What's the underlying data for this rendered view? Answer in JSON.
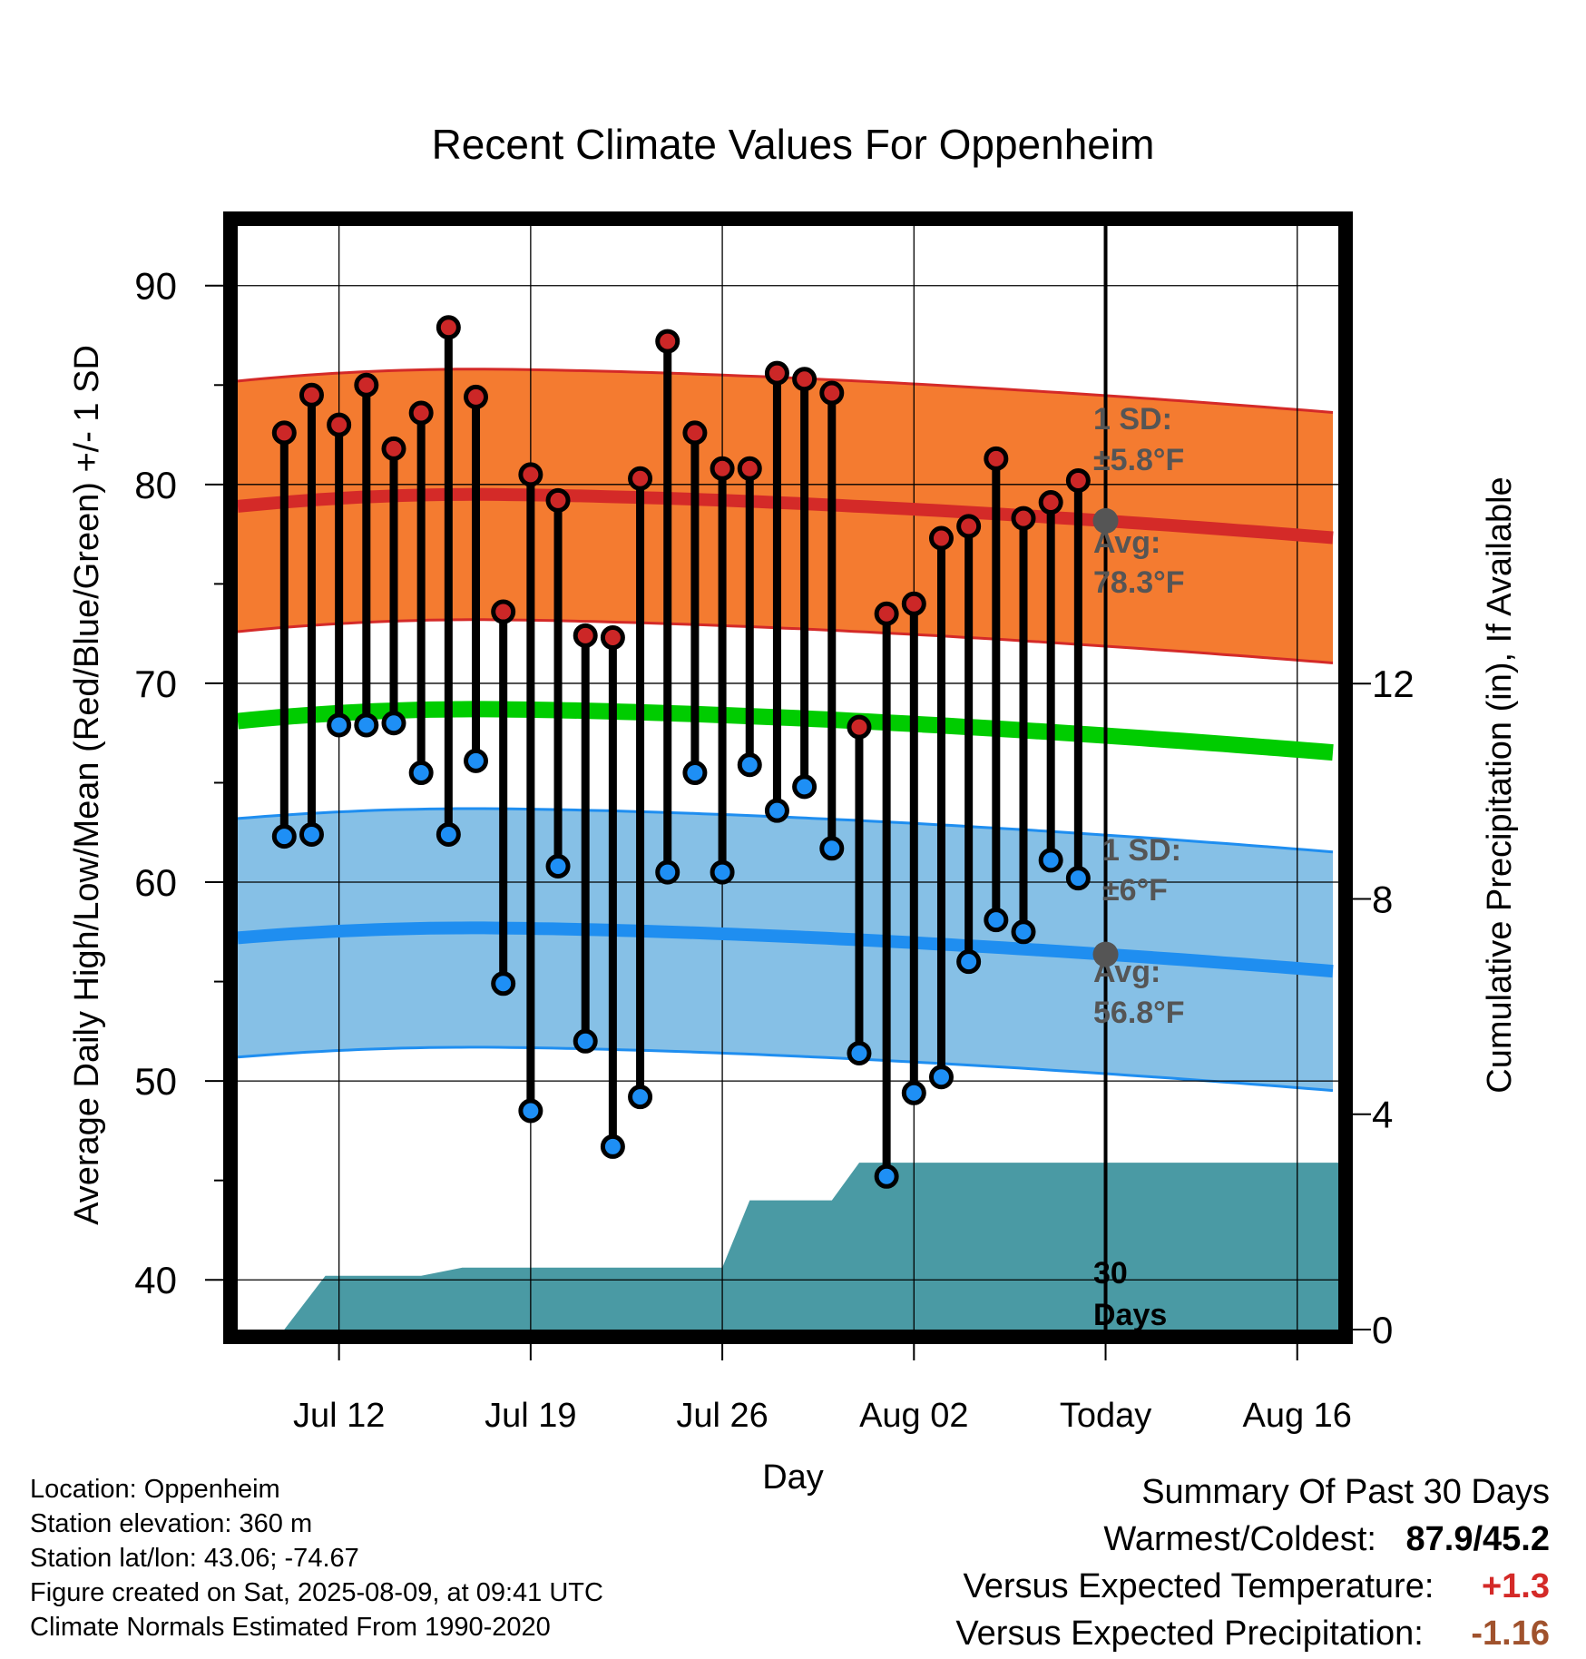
{
  "chart_data": {
    "type": "line",
    "title": "Recent Climate Values For Oppenheim",
    "xlabel": "Day",
    "ylabel": "Average Daily High/Low/Mean (Red/Blue/Green) +/- 1 SD",
    "y2label": "Cumulative Precipitation (in), If Available",
    "ylim": [
      37.5,
      93
    ],
    "y2lim": [
      0,
      20.5
    ],
    "yticks": [
      "40",
      "50",
      "60",
      "70",
      "80",
      "90"
    ],
    "y2ticks": [
      "0",
      "4",
      "8",
      "12"
    ],
    "x_ticks": [
      {
        "day": 12,
        "label": "Jul 12"
      },
      {
        "day": 19,
        "label": "Jul 19"
      },
      {
        "day": 26,
        "label": "Jul 26"
      },
      {
        "day": 33,
        "label": "Aug 02"
      },
      {
        "day": 40,
        "label": "Today"
      },
      {
        "day": 47,
        "label": "Aug 16"
      }
    ],
    "today_day": 40,
    "highs": [
      82.6,
      84.5,
      83.0,
      85.0,
      81.8,
      83.6,
      87.9,
      84.4,
      73.6,
      80.5,
      79.2,
      72.4,
      72.3,
      80.3,
      87.2,
      82.6,
      80.8,
      80.8,
      85.6,
      85.3,
      84.6,
      67.8,
      73.5,
      74.0,
      77.3,
      77.9,
      81.3,
      78.3,
      79.1,
      80.2
    ],
    "lows": [
      62.3,
      62.4,
      67.9,
      67.9,
      68.0,
      65.5,
      62.4,
      66.1,
      54.9,
      48.5,
      60.8,
      52.0,
      46.7,
      49.2,
      60.5,
      65.5,
      60.5,
      65.9,
      63.6,
      64.8,
      61.7,
      51.4,
      45.2,
      49.4,
      50.2,
      56.0,
      58.1,
      57.5,
      61.1,
      60.2
    ],
    "normal_high": {
      "start": 78.9,
      "peak": 79.5,
      "end": 77.3
    },
    "normal_low": {
      "start": 57.2,
      "peak": 57.7,
      "end": 55.5
    },
    "normal_mean": {
      "start": 68.1,
      "peak": 68.7,
      "end": 66.5
    },
    "precip_cumulative": [
      {
        "day": 10,
        "value": 0.0
      },
      {
        "day": 11.5,
        "value": 1.0
      },
      {
        "day": 15,
        "value": 1.0
      },
      {
        "day": 16.5,
        "value": 1.15
      },
      {
        "day": 26,
        "value": 1.15
      },
      {
        "day": 27,
        "value": 2.4
      },
      {
        "day": 30,
        "value": 2.4
      },
      {
        "day": 31,
        "value": 3.1
      },
      {
        "day": 48.5,
        "value": 3.1
      }
    ],
    "annotations": {
      "high_sd_label": "1 SD:",
      "high_sd_value": "±5.8°F",
      "high_avg_label": "Avg:",
      "high_avg_value": "78.3°F",
      "low_sd_label": "1 SD:",
      "low_sd_value": "±6°F",
      "low_avg_label": "Avg:",
      "low_avg_value": "56.8°F",
      "window_number": "30",
      "window_unit": "Days"
    },
    "colors": {
      "high_band": "#f47b30",
      "high_line": "#d42a28",
      "low_band": "#86c0e6",
      "low_line": "#1f8ef0",
      "mean_line": "#00cc00",
      "precip": "#4a9aa4",
      "high_marker": "#cc2727",
      "low_marker": "#1e8ff5",
      "annotation": "#555555"
    },
    "grid": true
  },
  "footer": {
    "location": "Location: Oppenheim",
    "elevation": "Station elevation: 360 m",
    "latlon": "Station lat/lon: 43.06; -74.67",
    "created": "Figure created on Sat, 2025-08-09, at 09:41 UTC",
    "normals": "Climate Normals Estimated From 1990-2020"
  },
  "summary": {
    "title": "Summary Of Past 30 Days",
    "warmest_label": "Warmest/Coldest:",
    "warmest_value": "87.9/45.2",
    "temp_label": "Versus Expected Temperature:",
    "temp_value": "+1.3",
    "temp_color": "#d42a28",
    "precip_label": "Versus Expected Precipitation:",
    "precip_value": "-1.16",
    "precip_color": "#a0522d"
  }
}
